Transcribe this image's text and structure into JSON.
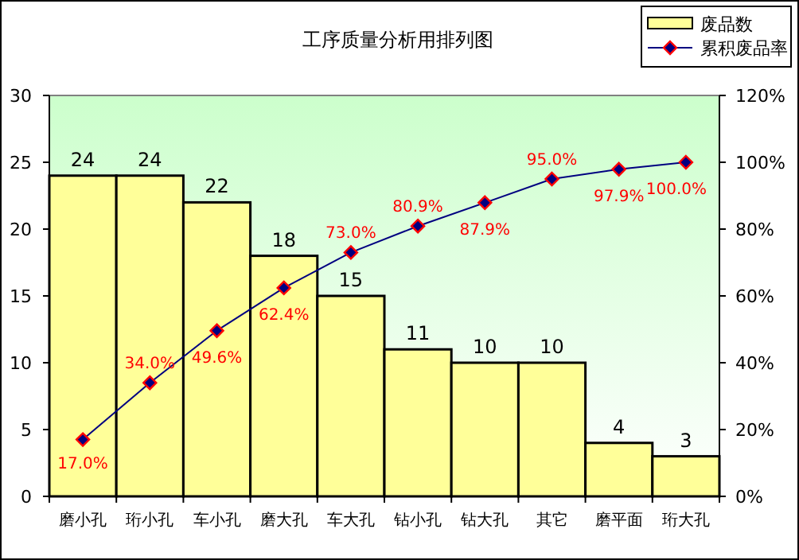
{
  "chart_data": {
    "type": "bar",
    "title": "工序质量分析用排列图",
    "categories": [
      "磨小孔",
      "珩小孔",
      "车小孔",
      "磨大孔",
      "车大孔",
      "钻小孔",
      "钻大孔",
      "其它",
      "磨平面",
      "珩大孔"
    ],
    "series": [
      {
        "name": "废品数",
        "color": "#ffff99",
        "values": [
          24,
          24,
          22,
          18,
          15,
          11,
          10,
          10,
          4,
          3
        ],
        "value_labels": [
          "24",
          "24",
          "22",
          "18",
          "15",
          "11",
          "10",
          "10",
          "4",
          "3"
        ]
      },
      {
        "name": "累积废品率",
        "type": "line",
        "axis": "y2",
        "color": "#000080",
        "marker": "diamond",
        "values": [
          17.0,
          34.0,
          49.6,
          62.4,
          73.0,
          80.9,
          87.9,
          95.0,
          97.9,
          100.0
        ],
        "value_labels": [
          "17.0%",
          "34.0%",
          "49.6%",
          "62.4%",
          "73.0%",
          "80.9%",
          "87.9%",
          "95.0%",
          "97.9%",
          "100.0%"
        ]
      }
    ],
    "ylim": [
      0,
      30
    ],
    "yticks": [
      0,
      5,
      10,
      15,
      20,
      25,
      30
    ],
    "y2lim": [
      0,
      120
    ],
    "y2ticks": [
      {
        "value": 0,
        "label": "0%"
      },
      {
        "value": 20,
        "label": "20%"
      },
      {
        "value": 40,
        "label": "40%"
      },
      {
        "value": 60,
        "label": "60%"
      },
      {
        "value": 80,
        "label": "80%"
      },
      {
        "value": 100,
        "label": "100%"
      },
      {
        "value": 120,
        "label": "120%"
      }
    ],
    "legend": "top right",
    "grid": false
  }
}
